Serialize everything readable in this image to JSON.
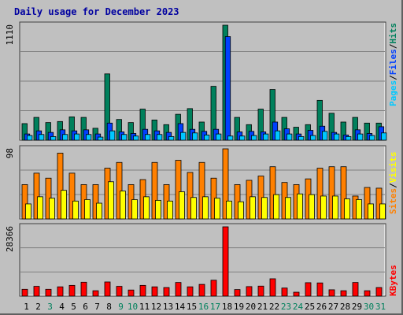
{
  "title": "Daily usage for December 2023",
  "colors": {
    "background": "#c0c0c0",
    "plot_bg": "#c0c0c0",
    "hits": "#00805c",
    "files": "#0040ff",
    "pages": "#00c8ff",
    "visits": "#ff8000",
    "sites": "#ffff00",
    "kbytes": "#ff0000",
    "weekend_label": "#00805c",
    "weekday_label": "#000000",
    "title": "#0000a0"
  },
  "chart_data": [
    {
      "type": "bar",
      "name": "hits-files-pages",
      "ymax_label": "1110",
      "ylim": [
        0,
        1110
      ],
      "legend": [
        "Pages",
        "Files",
        "Hits"
      ],
      "categories": [
        "1",
        "2",
        "3",
        "4",
        "5",
        "6",
        "7",
        "8",
        "9",
        "10",
        "11",
        "12",
        "13",
        "14",
        "15",
        "16",
        "17",
        "18",
        "19",
        "20",
        "21",
        "22",
        "23",
        "24",
        "25",
        "26",
        "27",
        "28",
        "29",
        "30",
        "31"
      ],
      "series": [
        {
          "name": "Hits",
          "values": [
            160,
            220,
            170,
            180,
            225,
            220,
            115,
            640,
            200,
            170,
            300,
            195,
            150,
            250,
            305,
            175,
            520,
            1110,
            220,
            150,
            300,
            490,
            220,
            125,
            150,
            385,
            260,
            175,
            220,
            165,
            165
          ]
        },
        {
          "name": "Files",
          "values": [
            60,
            90,
            75,
            100,
            90,
            100,
            60,
            165,
            80,
            65,
            105,
            90,
            75,
            160,
            105,
            85,
            105,
            1000,
            80,
            85,
            80,
            175,
            110,
            60,
            95,
            135,
            75,
            50,
            100,
            65,
            130
          ]
        },
        {
          "name": "Pages",
          "values": [
            45,
            55,
            35,
            55,
            60,
            55,
            30,
            90,
            55,
            40,
            55,
            55,
            35,
            75,
            70,
            50,
            60,
            40,
            40,
            45,
            60,
            90,
            60,
            35,
            45,
            85,
            60,
            35,
            60,
            45,
            70
          ]
        }
      ]
    },
    {
      "type": "bar",
      "name": "visits-sites",
      "ymax_label": "98",
      "ylim": [
        0,
        98
      ],
      "legend": [
        "Sites",
        "Visits"
      ],
      "categories": [
        "1",
        "2",
        "3",
        "4",
        "5",
        "6",
        "7",
        "8",
        "9",
        "10",
        "11",
        "12",
        "13",
        "14",
        "15",
        "16",
        "17",
        "18",
        "19",
        "20",
        "21",
        "22",
        "23",
        "24",
        "25",
        "26",
        "27",
        "28",
        "29",
        "30",
        "31"
      ],
      "series": [
        {
          "name": "Visits",
          "values": [
            48,
            64,
            57,
            92,
            64,
            48,
            48,
            71,
            79,
            48,
            55,
            79,
            48,
            82,
            65,
            79,
            57,
            98,
            48,
            54,
            60,
            73,
            51,
            48,
            56,
            71,
            73,
            73,
            32,
            44,
            43
          ]
        },
        {
          "name": "Sites",
          "values": [
            21,
            31,
            29,
            40,
            25,
            27,
            22,
            52,
            39,
            27,
            31,
            26,
            25,
            38,
            30,
            31,
            29,
            25,
            24,
            31,
            30,
            34,
            30,
            35,
            34,
            32,
            32,
            28,
            27,
            21,
            21
          ]
        }
      ]
    },
    {
      "type": "bar",
      "name": "kbytes",
      "ymax_label": "28366",
      "ylim": [
        0,
        28366
      ],
      "legend": [
        "KBytes"
      ],
      "categories": [
        "1",
        "2",
        "3",
        "4",
        "5",
        "6",
        "7",
        "8",
        "9",
        "10",
        "11",
        "12",
        "13",
        "14",
        "15",
        "16",
        "17",
        "18",
        "19",
        "20",
        "21",
        "22",
        "23",
        "24",
        "25",
        "26",
        "27",
        "28",
        "29",
        "30",
        "31"
      ],
      "series": [
        {
          "name": "KBytes",
          "values": [
            2800,
            4000,
            2800,
            3800,
            4400,
            5700,
            2200,
            5800,
            4000,
            2500,
            4400,
            3800,
            3500,
            5600,
            3800,
            4800,
            6500,
            28366,
            2700,
            3900,
            4100,
            7100,
            3300,
            1600,
            5500,
            5400,
            2600,
            2200,
            5600,
            2200,
            3500
          ]
        }
      ]
    }
  ],
  "weekend_days": [
    3,
    9,
    10,
    16,
    17,
    23,
    24,
    30,
    31
  ]
}
